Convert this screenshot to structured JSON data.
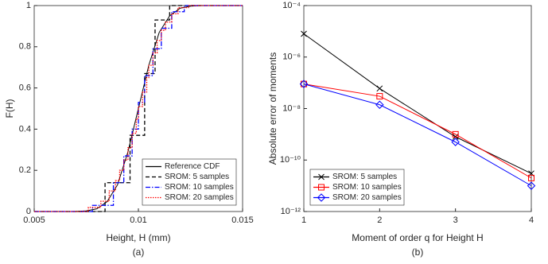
{
  "chart_data": [
    {
      "type": "line",
      "xlabel": "Height, H (mm)",
      "ylabel": "F(H)",
      "caption": "(a)",
      "xlim": [
        0.005,
        0.015
      ],
      "xticks": [
        0.005,
        0.01,
        0.015
      ],
      "ylim": [
        0,
        1
      ],
      "yticks": [
        0,
        0.2,
        0.4,
        0.6,
        0.8,
        1
      ],
      "legend": "lower right",
      "series": [
        {
          "name": "Reference CDF",
          "color": "#000000",
          "linestyle": "solid",
          "drawstyle": "default",
          "x": [
            0.005,
            0.0055,
            0.007,
            0.0075,
            0.008,
            0.0085,
            0.009,
            0.0095,
            0.01,
            0.0105,
            0.011,
            0.0115,
            0.012,
            0.0125,
            0.013,
            0.015
          ],
          "values": [
            0,
            0,
            0.0004,
            0.003,
            0.013,
            0.048,
            0.13,
            0.29,
            0.5,
            0.71,
            0.87,
            0.95,
            0.987,
            0.997,
            1,
            1
          ]
        },
        {
          "name": "SROM: 5 samples",
          "color": "#000000",
          "linestyle": "dashed",
          "drawstyle": "steps-post",
          "x": [
            0.005,
            0.0084,
            0.0096,
            0.0103,
            0.0108,
            0.0115,
            0.015
          ],
          "values": [
            0,
            0.14,
            0.37,
            0.67,
            0.93,
            1,
            1
          ]
        },
        {
          "name": "SROM: 10 samples",
          "color": "#0000ff",
          "linestyle": "dashdot",
          "drawstyle": "steps-post",
          "x": [
            0.005,
            0.0078,
            0.0088,
            0.0093,
            0.0097,
            0.01,
            0.0103,
            0.0107,
            0.0111,
            0.0116,
            0.0122,
            0.015
          ],
          "values": [
            0,
            0.03,
            0.14,
            0.27,
            0.4,
            0.53,
            0.66,
            0.79,
            0.89,
            0.97,
            1,
            1
          ]
        },
        {
          "name": "SROM: 20 samples",
          "color": "#ff0000",
          "linestyle": "dotted",
          "drawstyle": "steps-post",
          "x": [
            0.005,
            0.0076,
            0.0082,
            0.0086,
            0.0089,
            0.0091,
            0.0093,
            0.0095,
            0.0097,
            0.0099,
            0.01,
            0.0102,
            0.0104,
            0.0105,
            0.0107,
            0.0109,
            0.0111,
            0.0113,
            0.0116,
            0.0119,
            0.0124,
            0.015
          ],
          "values": [
            0,
            0.02,
            0.05,
            0.1,
            0.15,
            0.2,
            0.25,
            0.31,
            0.38,
            0.45,
            0.51,
            0.58,
            0.65,
            0.71,
            0.77,
            0.83,
            0.88,
            0.92,
            0.96,
            0.99,
            1,
            1
          ]
        }
      ]
    },
    {
      "type": "line",
      "xlabel": "Moment of order q for Height H",
      "ylabel": "Absolute error of moments",
      "caption": "(b)",
      "xlim": [
        1,
        4
      ],
      "xticks": [
        1,
        2,
        3,
        4
      ],
      "ylim": [
        1e-12,
        0.0001
      ],
      "ylog": true,
      "yticks": [
        {
          "value": 1e-12,
          "label": "10⁻¹²"
        },
        {
          "value": 1e-10,
          "label": "10⁻¹⁰"
        },
        {
          "value": 1e-08,
          "label": "10⁻⁸"
        },
        {
          "value": 1e-06,
          "label": "10⁻⁶"
        },
        {
          "value": 0.0001,
          "label": "10⁻⁴"
        }
      ],
      "legend": "lower left",
      "series": [
        {
          "name": "SROM: 5 samples",
          "color": "#000000",
          "marker": "x",
          "x": [
            1,
            2,
            3,
            4
          ],
          "values": [
            8e-06,
            6e-08,
            8e-10,
            3e-11
          ]
        },
        {
          "name": "SROM: 10 samples",
          "color": "#ff0000",
          "marker": "s",
          "x": [
            1,
            2,
            3,
            4
          ],
          "values": [
            9e-08,
            3e-08,
            1e-09,
            2e-11
          ]
        },
        {
          "name": "SROM: 20 samples",
          "color": "#0000ff",
          "marker": "D",
          "x": [
            1,
            2,
            3,
            4
          ],
          "values": [
            9e-08,
            1.4e-08,
            5e-10,
            1e-11
          ]
        }
      ]
    }
  ]
}
